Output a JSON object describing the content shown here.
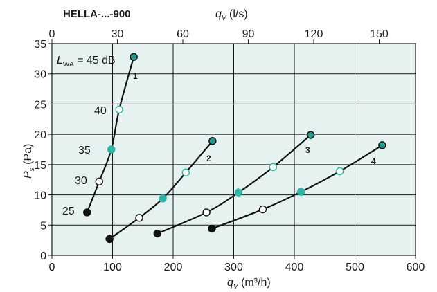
{
  "chart_data": {
    "type": "line",
    "title": "HELLA-...-900",
    "note": {
      "prefix": "L",
      "subscript": "WA",
      "text": " = 45 dB"
    },
    "xlabel": {
      "main": "q",
      "sub": "V",
      "unit": " (m³/h)"
    },
    "x2label": {
      "main": "q",
      "sub": "V",
      "unit": " (l/s)"
    },
    "ylabel": {
      "main": "P",
      "sub": "s",
      "unit": " (Pa)"
    },
    "xlim": [
      0,
      600
    ],
    "x2lim": [
      0,
      166.67
    ],
    "ylim": [
      0,
      35
    ],
    "xticks": [
      "0",
      "100",
      "200",
      "300",
      "400",
      "500",
      "600"
    ],
    "xtick_values": [
      0,
      100,
      200,
      300,
      400,
      500,
      600
    ],
    "x2ticks": [
      "0",
      "30",
      "60",
      "90",
      "120",
      "150"
    ],
    "x2tick_values": [
      0,
      30,
      60,
      90,
      120,
      150
    ],
    "yticks": [
      "0",
      "5",
      "10",
      "15",
      "20",
      "25",
      "30",
      "35"
    ],
    "ytick_values": [
      0,
      5,
      10,
      15,
      20,
      25,
      30,
      35
    ],
    "grid": true,
    "series": [
      {
        "label": "1",
        "x": [
          58,
          78,
          98,
          111,
          135
        ],
        "y": [
          7.1,
          12.2,
          17.5,
          24.1,
          32.8
        ]
      },
      {
        "label": "2",
        "x": [
          95,
          144,
          183,
          221,
          265
        ],
        "y": [
          2.7,
          6.2,
          9.4,
          13.7,
          18.9
        ]
      },
      {
        "label": "3",
        "x": [
          174,
          255,
          308,
          365,
          427
        ],
        "y": [
          3.6,
          7.1,
          10.4,
          14.6,
          19.9
        ]
      },
      {
        "label": "4",
        "x": [
          264,
          348,
          411,
          475,
          545
        ],
        "y": [
          4.4,
          7.6,
          10.5,
          13.9,
          18.2
        ]
      }
    ],
    "markers": [
      "filled-black",
      "open-black",
      "filled-teal",
      "open-teal",
      "filled-teal-outlined"
    ],
    "levels": [
      "25",
      "30",
      "35",
      "40"
    ],
    "colors": {
      "background": "#e6f2f0",
      "teal": "#2bb5a3",
      "dark_teal": "#1e9a8a",
      "line": "#111111",
      "grid": "#1a1a1a"
    }
  }
}
